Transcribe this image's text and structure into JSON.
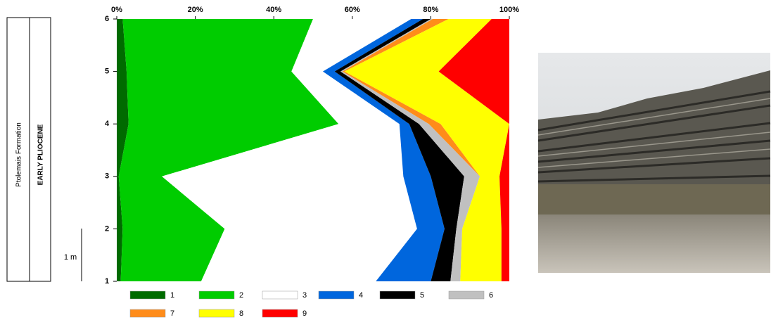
{
  "stratigraphy": {
    "formation": "Ptolemais Formation",
    "epoch": "EARLY PLIOCENE",
    "scale": "1 m"
  },
  "chart_data": {
    "type": "stacked-area-horizontal",
    "y": [
      1,
      2,
      3,
      4,
      5,
      6
    ],
    "ylim": [
      1,
      6
    ],
    "yticks": [
      1,
      2,
      3,
      4,
      5,
      6
    ],
    "xlim": [
      0,
      100
    ],
    "xticks": [
      {
        "value": 0,
        "label": "0%"
      },
      {
        "value": 20,
        "label": "20%"
      },
      {
        "value": 40,
        "label": "40%"
      },
      {
        "value": 60,
        "label": "60%"
      },
      {
        "value": 80,
        "label": "80%"
      },
      {
        "value": 100,
        "label": "100%"
      }
    ],
    "series": [
      {
        "name": "1",
        "color": "#006b00",
        "values": [
          1,
          1.5,
          0.5,
          3,
          2.5,
          1.5
        ]
      },
      {
        "name": "2",
        "color": "#00cc00",
        "values": [
          20.5,
          26,
          11,
          53.5,
          42,
          48.5
        ]
      },
      {
        "name": "3",
        "color": "#ffffff",
        "values": [
          44.5,
          49,
          61.5,
          15.5,
          8,
          25
        ]
      },
      {
        "name": "4",
        "color": "#0066dd",
        "values": [
          14,
          7,
          7,
          2.5,
          3,
          3
        ]
      },
      {
        "name": "5",
        "color": "#000000",
        "values": [
          5,
          3,
          8.5,
          2.5,
          1.5,
          2
        ]
      },
      {
        "name": "6",
        "color": "#c0c0c0",
        "values": [
          2.5,
          1.5,
          4,
          2.5,
          0.5,
          0.5
        ]
      },
      {
        "name": "7",
        "color": "#ff8c1a",
        "values": [
          0,
          0,
          0,
          3,
          0.5,
          4
        ]
      },
      {
        "name": "8",
        "color": "#ffff00",
        "values": [
          10.5,
          10,
          5,
          17.5,
          24,
          11
        ]
      },
      {
        "name": "9",
        "color": "#ff0000",
        "values": [
          2,
          2,
          2.5,
          0,
          18,
          4.5
        ]
      }
    ]
  }
}
